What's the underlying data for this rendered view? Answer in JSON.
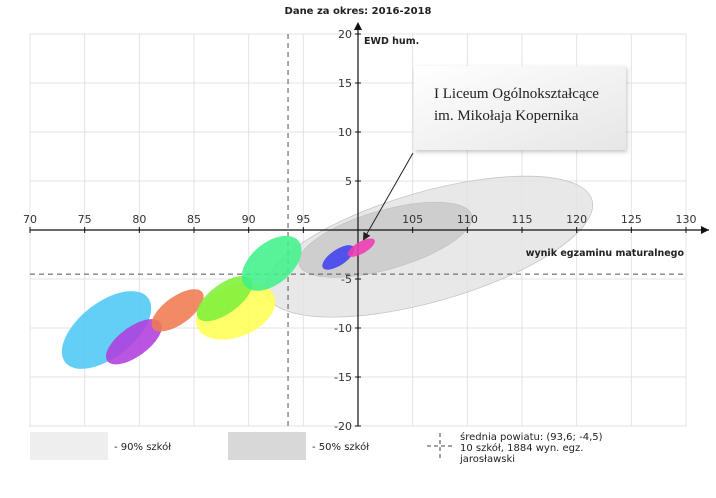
{
  "chart_data": {
    "type": "scatter",
    "title": "Dane za okres: 2016-2018",
    "xlabel": "wynik egzaminu maturalnego",
    "ylabel": "EWD hum.",
    "xlim": [
      70,
      130
    ],
    "ylim": [
      -20,
      20
    ],
    "x_ticks": [
      70,
      75,
      80,
      85,
      90,
      95,
      105,
      110,
      115,
      120,
      125,
      130
    ],
    "y_ticks": [
      20,
      15,
      10,
      5,
      -5,
      -10,
      -15,
      -20
    ],
    "grid": true,
    "reference_lines": {
      "x": 93.6,
      "y": -4.5
    },
    "regions": [
      {
        "name": "90% szkół",
        "cx": 106.5,
        "cy": -1.7,
        "rx": 15.5,
        "ry": 5.6,
        "angle": 16,
        "color": "#e4e4e4"
      },
      {
        "name": "50% szkół",
        "cx": 102.5,
        "cy": -1.0,
        "rx": 8.2,
        "ry": 3.0,
        "angle": 16,
        "color": "#cacaca"
      }
    ],
    "ellipses": [
      {
        "cx": 77.0,
        "cy": -10.2,
        "rx": 4.8,
        "ry": 2.8,
        "angle": 38,
        "color": "#4fc8f5"
      },
      {
        "cx": 79.5,
        "cy": -11.4,
        "rx": 3.0,
        "ry": 1.5,
        "angle": 36,
        "color": "#b03ddd"
      },
      {
        "cx": 83.5,
        "cy": -8.2,
        "rx": 2.8,
        "ry": 1.4,
        "angle": 36,
        "color": "#f07a50"
      },
      {
        "cx": 88.8,
        "cy": -8.3,
        "rx": 3.8,
        "ry": 2.6,
        "angle": 22,
        "color": "#ffff55"
      },
      {
        "cx": 87.8,
        "cy": -7.0,
        "rx": 3.0,
        "ry": 1.5,
        "angle": 36,
        "color": "#7ef03a"
      },
      {
        "cx": 92.1,
        "cy": -3.4,
        "rx": 3.2,
        "ry": 2.1,
        "angle": 40,
        "color": "#41f08a"
      },
      {
        "cx": 98.2,
        "cy": -2.8,
        "rx": 1.7,
        "ry": 0.8,
        "angle": 34,
        "color": "#4040f0"
      },
      {
        "cx": 100.3,
        "cy": -1.8,
        "rx": 1.4,
        "ry": 0.6,
        "angle": 30,
        "color": "#f03ab2"
      }
    ],
    "annotation": {
      "lines": [
        "I Liceum Ogólnokształcące",
        "im. Mikołaja Kopernika"
      ],
      "target": [
        100.5,
        -1.0
      ]
    },
    "legend": {
      "region90_label": "- 90% szkół",
      "region50_label": "- 50% szkół",
      "mean_lines": [
        "średnia powiatu: (93,6; -4,5)",
        "10 szkół, 1884 wyn. egz.",
        "jarosławski"
      ]
    }
  }
}
